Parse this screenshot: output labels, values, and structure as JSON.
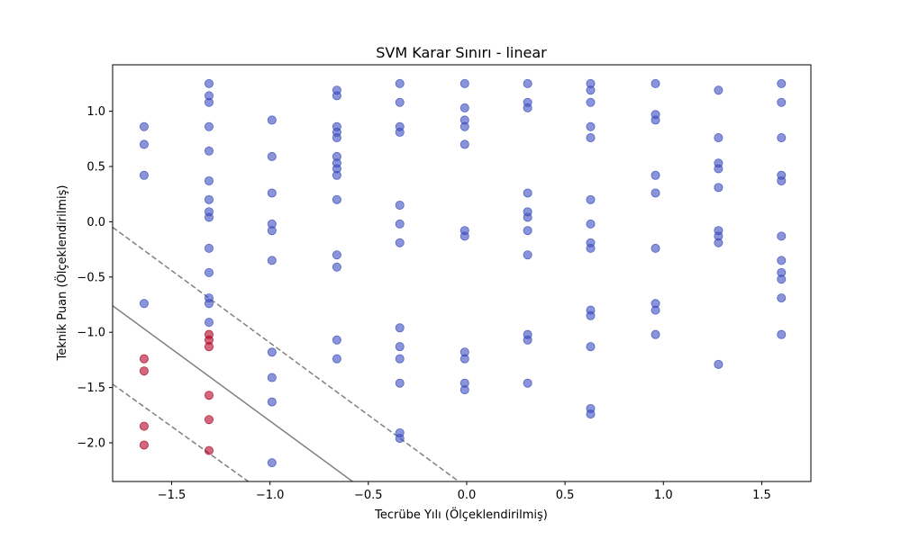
{
  "chart_data": {
    "type": "scatter",
    "title": "SVM Karar Sınırı - linear",
    "xlabel": "Tecrübe Yılı (Ölçeklendirilmiş)",
    "ylabel": "Teknik Puan (Ölçeklendirilmiş)",
    "xlim": [
      -1.8,
      1.75
    ],
    "ylim": [
      -2.35,
      1.42
    ],
    "xticks": [
      -1.5,
      -1.0,
      -0.5,
      0.0,
      0.5,
      1.0,
      1.5
    ],
    "xtick_labels": [
      "−1.5",
      "−1.0",
      "−0.5",
      "0.0",
      "0.5",
      "1.0",
      "1.5"
    ],
    "yticks": [
      -2.0,
      -1.5,
      -1.0,
      -0.5,
      0.0,
      0.5,
      1.0
    ],
    "ytick_labels": [
      "−2.0",
      "−1.5",
      "−1.0",
      "−0.5",
      "0.0",
      "0.5",
      "1.0"
    ],
    "grid": false,
    "colors": {
      "class_a": "#3a4cc0",
      "class_b": "#b40426",
      "boundary": "#808080"
    },
    "point_alpha": 0.6,
    "lines": [
      {
        "kind": "decision-boundary",
        "style": "solid",
        "points": [
          [
            -1.8,
            -0.76
          ],
          [
            -0.58,
            -2.35
          ]
        ]
      },
      {
        "kind": "margin-upper",
        "style": "dashed",
        "points": [
          [
            -1.8,
            -0.05
          ],
          [
            -0.04,
            -2.35
          ]
        ]
      },
      {
        "kind": "margin-lower",
        "style": "dashed",
        "points": [
          [
            -1.8,
            -1.47
          ],
          [
            -1.11,
            -2.35
          ]
        ]
      }
    ],
    "series": [
      {
        "class": "class_a",
        "points": [
          [
            -1.64,
            0.86
          ],
          [
            -1.64,
            0.7
          ],
          [
            -1.64,
            0.42
          ],
          [
            -1.64,
            -0.74
          ],
          [
            -1.31,
            1.25
          ],
          [
            -1.31,
            1.14
          ],
          [
            -1.31,
            1.08
          ],
          [
            -1.31,
            0.86
          ],
          [
            -1.31,
            0.64
          ],
          [
            -1.31,
            0.37
          ],
          [
            -1.31,
            0.2
          ],
          [
            -1.31,
            0.09
          ],
          [
            -1.31,
            0.04
          ],
          [
            -1.31,
            -0.24
          ],
          [
            -1.31,
            -0.46
          ],
          [
            -1.31,
            -0.69
          ],
          [
            -1.31,
            -0.74
          ],
          [
            -1.31,
            -0.91
          ],
          [
            -0.99,
            0.92
          ],
          [
            -0.99,
            0.59
          ],
          [
            -0.99,
            0.26
          ],
          [
            -0.99,
            -0.02
          ],
          [
            -0.99,
            -0.08
          ],
          [
            -0.99,
            -0.35
          ],
          [
            -0.99,
            -1.18
          ],
          [
            -0.99,
            -1.41
          ],
          [
            -0.99,
            -1.63
          ],
          [
            -0.99,
            -2.18
          ],
          [
            -0.66,
            1.19
          ],
          [
            -0.66,
            1.14
          ],
          [
            -0.66,
            0.86
          ],
          [
            -0.66,
            0.81
          ],
          [
            -0.66,
            0.76
          ],
          [
            -0.66,
            0.59
          ],
          [
            -0.66,
            0.53
          ],
          [
            -0.66,
            0.48
          ],
          [
            -0.66,
            0.42
          ],
          [
            -0.66,
            0.2
          ],
          [
            -0.66,
            -0.3
          ],
          [
            -0.66,
            -0.41
          ],
          [
            -0.66,
            -1.07
          ],
          [
            -0.66,
            -1.24
          ],
          [
            -0.34,
            1.25
          ],
          [
            -0.34,
            1.08
          ],
          [
            -0.34,
            0.86
          ],
          [
            -0.34,
            0.81
          ],
          [
            -0.34,
            0.15
          ],
          [
            -0.34,
            -0.02
          ],
          [
            -0.34,
            -0.19
          ],
          [
            -0.34,
            -0.96
          ],
          [
            -0.34,
            -1.13
          ],
          [
            -0.34,
            -1.24
          ],
          [
            -0.34,
            -1.46
          ],
          [
            -0.34,
            -1.91
          ],
          [
            -0.34,
            -1.96
          ],
          [
            -0.01,
            1.25
          ],
          [
            -0.01,
            1.03
          ],
          [
            -0.01,
            0.92
          ],
          [
            -0.01,
            0.86
          ],
          [
            -0.01,
            0.7
          ],
          [
            -0.01,
            -0.08
          ],
          [
            -0.01,
            -0.13
          ],
          [
            -0.01,
            -1.18
          ],
          [
            -0.01,
            -1.24
          ],
          [
            -0.01,
            -1.46
          ],
          [
            -0.01,
            -1.52
          ],
          [
            0.31,
            1.25
          ],
          [
            0.31,
            1.08
          ],
          [
            0.31,
            1.03
          ],
          [
            0.31,
            0.26
          ],
          [
            0.31,
            0.09
          ],
          [
            0.31,
            0.04
          ],
          [
            0.31,
            -0.08
          ],
          [
            0.31,
            -0.3
          ],
          [
            0.31,
            -1.02
          ],
          [
            0.31,
            -1.07
          ],
          [
            0.31,
            -1.46
          ],
          [
            0.63,
            1.25
          ],
          [
            0.63,
            1.19
          ],
          [
            0.63,
            1.08
          ],
          [
            0.63,
            0.86
          ],
          [
            0.63,
            0.76
          ],
          [
            0.63,
            0.2
          ],
          [
            0.63,
            -0.02
          ],
          [
            0.63,
            -0.19
          ],
          [
            0.63,
            -0.24
          ],
          [
            0.63,
            -0.8
          ],
          [
            0.63,
            -0.85
          ],
          [
            0.63,
            -1.13
          ],
          [
            0.63,
            -1.69
          ],
          [
            0.63,
            -1.74
          ],
          [
            0.96,
            1.25
          ],
          [
            0.96,
            0.97
          ],
          [
            0.96,
            0.92
          ],
          [
            0.96,
            0.42
          ],
          [
            0.96,
            0.26
          ],
          [
            0.96,
            -0.24
          ],
          [
            0.96,
            -0.74
          ],
          [
            0.96,
            -0.8
          ],
          [
            0.96,
            -1.02
          ],
          [
            1.28,
            1.19
          ],
          [
            1.28,
            0.76
          ],
          [
            1.28,
            0.53
          ],
          [
            1.28,
            0.48
          ],
          [
            1.28,
            0.31
          ],
          [
            1.28,
            -0.08
          ],
          [
            1.28,
            -0.13
          ],
          [
            1.28,
            -0.19
          ],
          [
            1.28,
            -1.29
          ],
          [
            1.6,
            1.25
          ],
          [
            1.6,
            1.08
          ],
          [
            1.6,
            0.76
          ],
          [
            1.6,
            0.42
          ],
          [
            1.6,
            0.37
          ],
          [
            1.6,
            -0.13
          ],
          [
            1.6,
            -0.35
          ],
          [
            1.6,
            -0.46
          ],
          [
            1.6,
            -0.52
          ],
          [
            1.6,
            -0.69
          ],
          [
            1.6,
            -1.02
          ]
        ]
      },
      {
        "class": "class_b",
        "points": [
          [
            -1.64,
            -1.24
          ],
          [
            -1.64,
            -1.35
          ],
          [
            -1.64,
            -1.85
          ],
          [
            -1.64,
            -2.02
          ],
          [
            -1.31,
            -1.02
          ],
          [
            -1.31,
            -1.07
          ],
          [
            -1.31,
            -1.13
          ],
          [
            -1.31,
            -1.57
          ],
          [
            -1.31,
            -1.79
          ],
          [
            -1.31,
            -2.07
          ]
        ]
      }
    ]
  }
}
